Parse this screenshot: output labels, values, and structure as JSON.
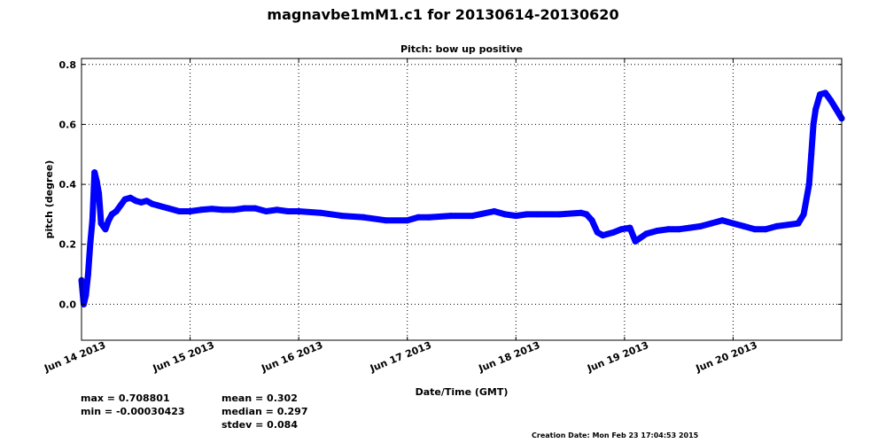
{
  "chart_data": {
    "type": "scatter",
    "title": "magnavbe1mM1.c1 for 20130614-20130620",
    "subtitle": "Pitch: bow up positive",
    "xlabel": "Date/Time (GMT)",
    "ylabel": "pitch (degree)",
    "xlim": [
      0,
      7
    ],
    "ylim": [
      -0.12,
      0.82
    ],
    "grid": true,
    "x_ticks": [
      {
        "value": 0,
        "label": "Jun 14 2013"
      },
      {
        "value": 1,
        "label": "Jun 15 2013"
      },
      {
        "value": 2,
        "label": "Jun 16 2013"
      },
      {
        "value": 3,
        "label": "Jun 17 2013"
      },
      {
        "value": 4,
        "label": "Jun 18 2013"
      },
      {
        "value": 5,
        "label": "Jun 19 2013"
      },
      {
        "value": 6,
        "label": "Jun 20 2013"
      }
    ],
    "y_ticks": [
      {
        "value": 0.0,
        "label": "0.0"
      },
      {
        "value": 0.2,
        "label": "0.2"
      },
      {
        "value": 0.4,
        "label": "0.4"
      },
      {
        "value": 0.6,
        "label": "0.6"
      },
      {
        "value": 0.8,
        "label": "0.8"
      }
    ],
    "series": [
      {
        "name": "pitch",
        "color": "#0000ff",
        "x": [
          0.0,
          0.02,
          0.04,
          0.06,
          0.08,
          0.1,
          0.12,
          0.14,
          0.16,
          0.18,
          0.2,
          0.22,
          0.25,
          0.28,
          0.32,
          0.36,
          0.4,
          0.45,
          0.5,
          0.55,
          0.6,
          0.65,
          0.7,
          0.75,
          0.8,
          0.9,
          1.0,
          1.1,
          1.2,
          1.3,
          1.4,
          1.5,
          1.6,
          1.7,
          1.8,
          1.9,
          2.0,
          2.2,
          2.4,
          2.6,
          2.8,
          3.0,
          3.1,
          3.2,
          3.4,
          3.6,
          3.8,
          3.9,
          4.0,
          4.1,
          4.2,
          4.4,
          4.6,
          4.65,
          4.7,
          4.75,
          4.8,
          4.9,
          4.97,
          5.05,
          5.1,
          5.2,
          5.3,
          5.4,
          5.5,
          5.6,
          5.7,
          5.8,
          5.9,
          6.0,
          6.1,
          6.2,
          6.3,
          6.4,
          6.5,
          6.6,
          6.65,
          6.7,
          6.72,
          6.74,
          6.76,
          6.8,
          6.85,
          6.9,
          6.95,
          7.0
        ],
        "y": [
          0.08,
          0.0,
          0.03,
          0.1,
          0.2,
          0.28,
          0.44,
          0.41,
          0.37,
          0.27,
          0.26,
          0.25,
          0.28,
          0.3,
          0.31,
          0.33,
          0.35,
          0.355,
          0.345,
          0.34,
          0.345,
          0.335,
          0.33,
          0.325,
          0.32,
          0.31,
          0.31,
          0.315,
          0.318,
          0.315,
          0.315,
          0.32,
          0.32,
          0.31,
          0.315,
          0.31,
          0.31,
          0.305,
          0.295,
          0.29,
          0.28,
          0.28,
          0.29,
          0.29,
          0.295,
          0.295,
          0.31,
          0.3,
          0.295,
          0.3,
          0.3,
          0.3,
          0.305,
          0.3,
          0.28,
          0.24,
          0.23,
          0.24,
          0.25,
          0.255,
          0.21,
          0.235,
          0.245,
          0.25,
          0.25,
          0.255,
          0.26,
          0.27,
          0.28,
          0.27,
          0.26,
          0.25,
          0.25,
          0.26,
          0.265,
          0.27,
          0.3,
          0.4,
          0.5,
          0.6,
          0.65,
          0.7,
          0.705,
          0.68,
          0.65,
          0.62
        ]
      }
    ],
    "stats": {
      "max": "max = 0.708801",
      "min": "min = -0.00030423",
      "mean": "mean = 0.302",
      "median": "median = 0.297",
      "stdev": "stdev = 0.084"
    },
    "creation_date": "Creation Date: Mon Feb 23 17:04:53 2015"
  }
}
